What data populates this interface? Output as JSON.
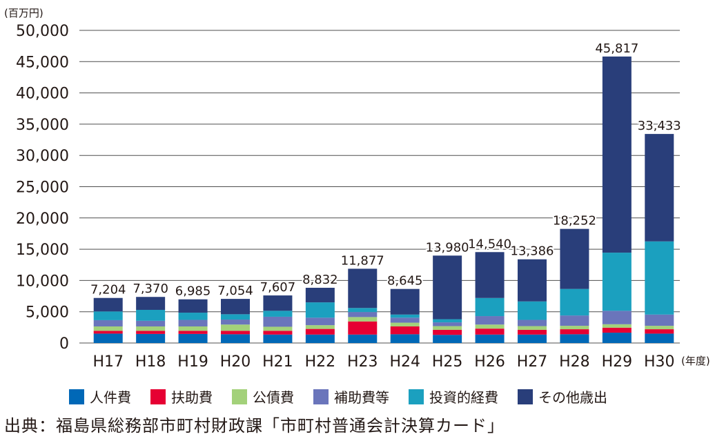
{
  "chart_data": {
    "type": "bar",
    "stacked": true,
    "unit": "(百万円)",
    "xunit": "(年度)",
    "ylim": [
      0,
      50000
    ],
    "yticks": [
      "0",
      "5,000",
      "10,000",
      "15,000",
      "20,000",
      "25,000",
      "30,000",
      "35,000",
      "40,000",
      "45,000",
      "50,000"
    ],
    "grid": true,
    "legend_position": "bottom",
    "categories": [
      "H17",
      "H18",
      "H19",
      "H20",
      "H21",
      "H22",
      "H23",
      "H24",
      "H25",
      "H26",
      "H27",
      "H28",
      "H29",
      "H30"
    ],
    "totals": [
      7204,
      7370,
      6985,
      7054,
      7607,
      8832,
      11877,
      8645,
      13980,
      14540,
      13386,
      18252,
      45817,
      33433
    ],
    "total_labels": [
      "7,204",
      "7,370",
      "6,985",
      "7,054",
      "7,607",
      "8,832",
      "11,877",
      "8,645",
      "13,980",
      "14,540",
      "13,386",
      "18,252",
      "45,817",
      "33,433"
    ],
    "series": [
      {
        "name": "人件費",
        "color": "#0068b7",
        "values": [
          1500,
          1450,
          1450,
          1400,
          1350,
          1350,
          1350,
          1400,
          1300,
          1350,
          1350,
          1400,
          1650,
          1500
        ]
      },
      {
        "name": "扶助費",
        "color": "#e60033",
        "values": [
          450,
          500,
          500,
          550,
          600,
          900,
          2100,
          1250,
          800,
          950,
          750,
          800,
          800,
          700
        ]
      },
      {
        "name": "公債費",
        "color": "#a3d17a",
        "values": [
          700,
          700,
          700,
          1000,
          650,
          600,
          700,
          600,
          600,
          650,
          600,
          550,
          550,
          550
        ]
      },
      {
        "name": "補助費等",
        "color": "#6a75bb",
        "values": [
          1000,
          900,
          1050,
          800,
          1600,
          1200,
          800,
          800,
          600,
          1350,
          1000,
          1650,
          2150,
          1800
        ]
      },
      {
        "name": "投資的経費",
        "color": "#1ba0bf",
        "values": [
          1400,
          1750,
          1150,
          850,
          950,
          2450,
          650,
          500,
          500,
          2900,
          2950,
          4250,
          9300,
          11700
        ]
      },
      {
        "name": "その他歳出",
        "color": "#293e7a",
        "values": [
          2154,
          2070,
          2135,
          2454,
          2457,
          2332,
          6277,
          4095,
          10180,
          7340,
          6736,
          9602,
          31367,
          17183
        ]
      }
    ]
  },
  "source": "出典：福島県総務部市町村財政課「市町村普通会計決算カード」"
}
